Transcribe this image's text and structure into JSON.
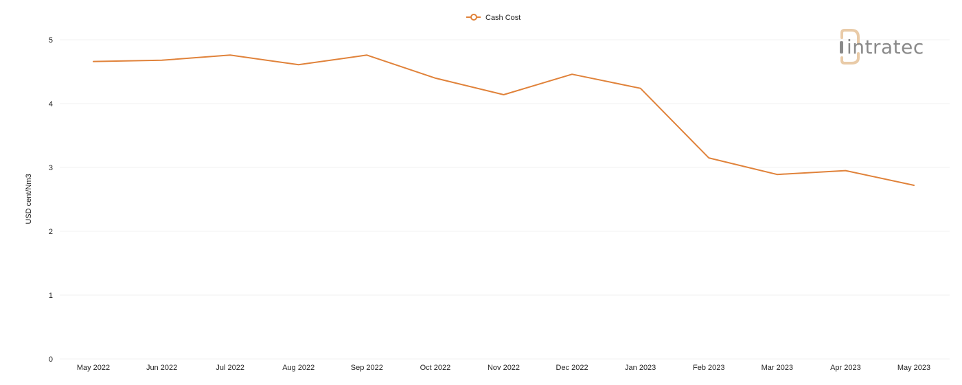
{
  "colors": {
    "series": "#e0823a",
    "grid": "#f0f0f0",
    "logo_text": "#8a8a8a",
    "logo_accent": "#e9cba8"
  },
  "logo": {
    "text": "intratec"
  },
  "chart_data": {
    "type": "line",
    "ylabel": "USD cent/Nm3",
    "xlabel": "",
    "ylim": [
      0,
      5
    ],
    "yticks": [
      0,
      1,
      2,
      3,
      4,
      5
    ],
    "grid": true,
    "legend_position": "top-center",
    "categories": [
      "May 2022",
      "Jun 2022",
      "Jul 2022",
      "Aug 2022",
      "Sep 2022",
      "Oct 2022",
      "Nov 2022",
      "Dec 2022",
      "Jan 2023",
      "Feb 2023",
      "Mar 2023",
      "Apr 2023",
      "May 2023"
    ],
    "series": [
      {
        "name": "Cash Cost",
        "values": [
          4.66,
          4.68,
          4.76,
          4.61,
          4.76,
          4.4,
          4.14,
          4.46,
          4.24,
          3.15,
          2.89,
          2.95,
          2.72
        ]
      }
    ]
  }
}
